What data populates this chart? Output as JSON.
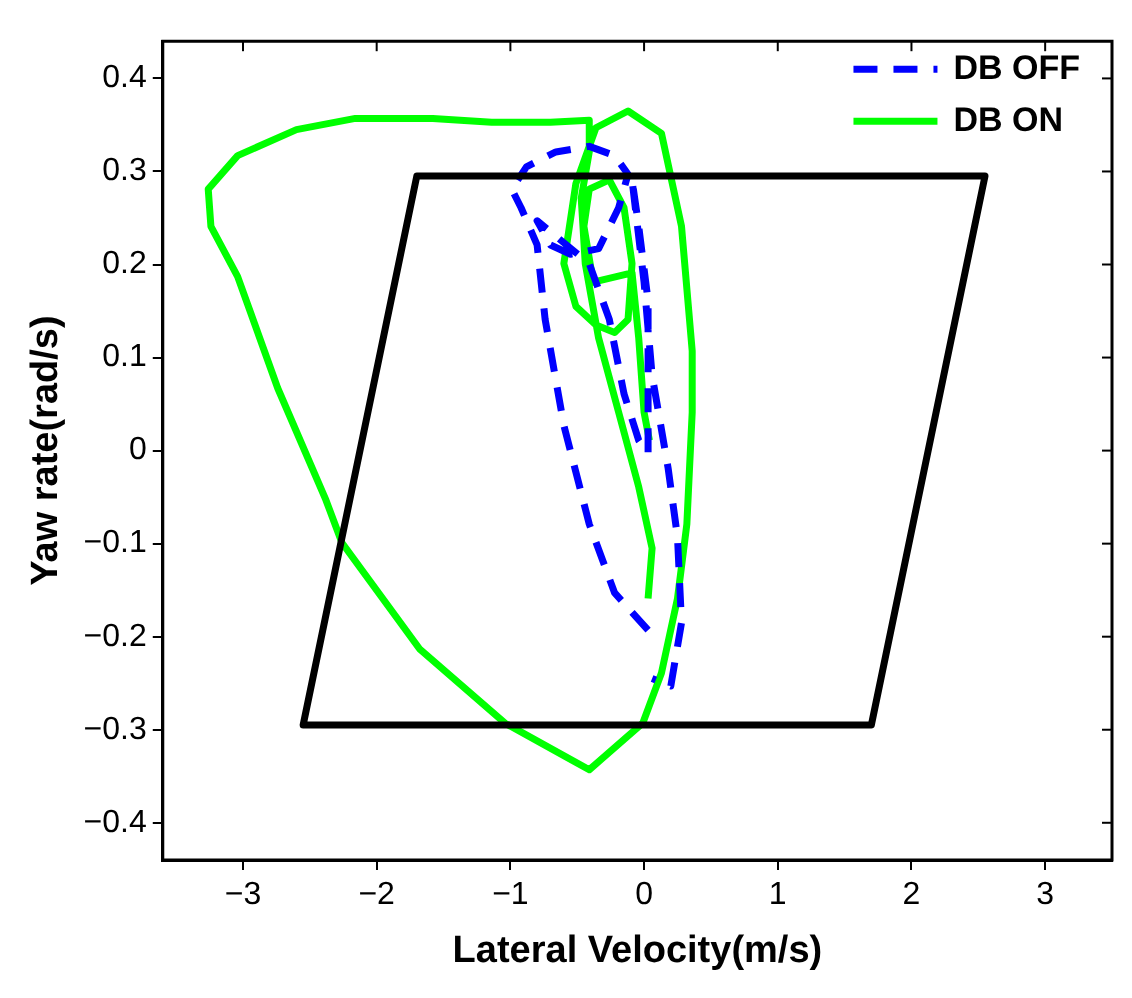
{
  "chart_data": {
    "type": "line",
    "xlabel": "Lateral Velocity(m/s)",
    "ylabel": "Yaw rate(rad/s)",
    "xlim": [
      -3.6,
      3.5
    ],
    "ylim": [
      -0.44,
      0.44
    ],
    "xticks": [
      {
        "value": -3,
        "label": "−3"
      },
      {
        "value": -2,
        "label": "−2"
      },
      {
        "value": -1,
        "label": "−1"
      },
      0,
      1,
      2,
      3
    ],
    "yticks": [
      {
        "value": -0.4,
        "label": "−0.4"
      },
      {
        "value": -0.3,
        "label": "−0.3"
      },
      {
        "value": -0.2,
        "label": "−0.2"
      },
      {
        "value": -0.1,
        "label": "−0.1"
      },
      0,
      0.1,
      0.2,
      0.3,
      0.4
    ],
    "grid": false,
    "legend": "top right",
    "marker": "none",
    "series": [
      {
        "color": "#000000",
        "line_style": "solid",
        "x": [
          -1.7,
          2.55,
          1.7,
          -2.55,
          -1.7,
          0.4
        ],
        "values": [
          0.295,
          0.295,
          -0.295,
          -0.295,
          0.295,
          0.295
        ]
      },
      {
        "name": "DB OFF",
        "color": "#0000ff",
        "line_style": "dashed",
        "x": [
          0.03,
          -0.22,
          -0.41,
          -0.6,
          -0.74,
          -0.8,
          -0.92,
          -0.99,
          -0.88,
          -0.66,
          -0.41,
          -0.22,
          -0.12,
          -0.19,
          -0.34,
          -0.55,
          -0.7,
          -0.8,
          -0.41,
          -0.26,
          -0.15,
          -0.04,
          0.03,
          0.03,
          -0.04,
          -0.09,
          0.0,
          0.06,
          0.18,
          0.25,
          0.28,
          0.2,
          0.06
        ],
        "values": [
          -0.193,
          -0.153,
          -0.079,
          0.027,
          0.141,
          0.221,
          0.261,
          0.281,
          0.305,
          0.321,
          0.327,
          0.317,
          0.297,
          0.261,
          0.217,
          0.211,
          0.221,
          0.247,
          0.201,
          0.141,
          0.061,
          0.011,
          -0.003,
          0.161,
          0.241,
          0.291,
          0.181,
          0.081,
          -0.019,
          -0.093,
          -0.185,
          -0.253,
          -0.245
        ]
      },
      {
        "name": "DB ON",
        "color": "#00ff00",
        "line_style": "solid",
        "x": [
          0.03,
          0.06,
          -0.04,
          -0.19,
          -0.34,
          -0.44,
          -0.47,
          -0.41,
          -0.41,
          -0.7,
          -1.14,
          -1.58,
          -2.16,
          -2.6,
          -3.04,
          -3.26,
          -3.24,
          -3.04,
          -2.74,
          -2.38,
          -2.26,
          -1.68,
          -1.04,
          -0.41,
          -0.01,
          0.13,
          0.25,
          0.32,
          0.36,
          0.36,
          0.28,
          0.13,
          -0.12,
          -0.36,
          -0.51,
          -0.6,
          -0.51,
          -0.36,
          -0.22,
          -0.12,
          -0.09,
          -0.15,
          -0.26,
          -0.41,
          -0.45,
          -0.38,
          -0.09,
          -0.04,
          0.0,
          0.04
        ],
        "values": [
          -0.159,
          -0.105,
          -0.039,
          0.041,
          0.121,
          0.201,
          0.271,
          0.321,
          0.355,
          0.353,
          0.353,
          0.357,
          0.357,
          0.345,
          0.317,
          0.281,
          0.241,
          0.187,
          0.067,
          -0.053,
          -0.099,
          -0.213,
          -0.293,
          -0.343,
          -0.293,
          -0.239,
          -0.159,
          -0.079,
          0.041,
          0.107,
          0.241,
          0.341,
          0.365,
          0.347,
          0.287,
          0.201,
          0.155,
          0.135,
          0.127,
          0.141,
          0.201,
          0.261,
          0.291,
          0.281,
          0.241,
          0.181,
          0.191,
          0.121,
          0.041,
          0.011
        ]
      }
    ]
  }
}
